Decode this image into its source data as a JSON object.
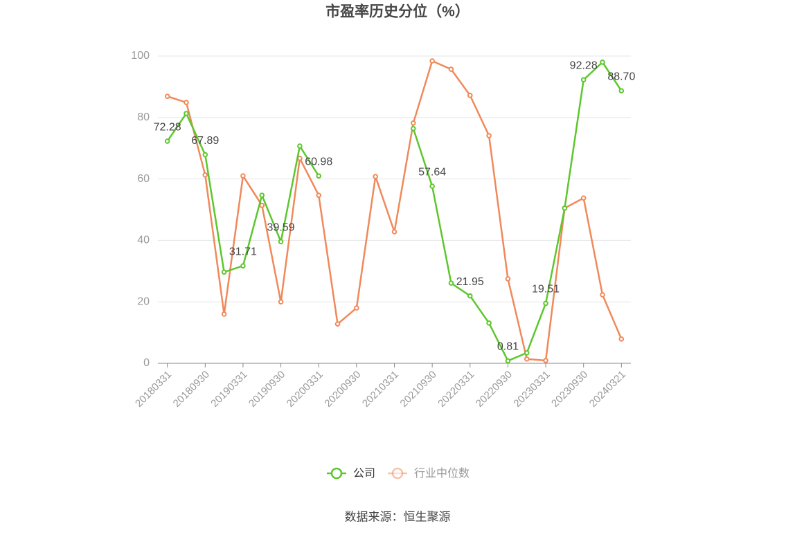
{
  "chart_data": {
    "type": "line",
    "title": "市盈率历史分位（%）",
    "categories": [
      "20180331",
      null,
      "20180930",
      null,
      "20190331",
      null,
      "20190930",
      null,
      "20200331",
      null,
      "20200930",
      null,
      "20210331",
      null,
      "20210930",
      null,
      "20220331",
      null,
      "20220930",
      null,
      "20230331",
      null,
      "20230930",
      null,
      "20240321"
    ],
    "series": [
      {
        "name": "公司",
        "color": "#5cc72c",
        "values": [
          72.28,
          81.3,
          67.89,
          29.7,
          31.71,
          54.7,
          39.59,
          70.7,
          60.98,
          null,
          null,
          null,
          null,
          76.4,
          57.64,
          26.1,
          21.95,
          13.1,
          0.81,
          3.4,
          19.51,
          50.5,
          92.28,
          98.0,
          88.7
        ],
        "value_labels": [
          "72.28",
          null,
          "67.89",
          null,
          "31.71",
          null,
          "39.59",
          null,
          "60.98",
          null,
          null,
          null,
          null,
          null,
          "57.64",
          null,
          "21.95",
          null,
          "0.81",
          null,
          "19.51",
          null,
          "92.28",
          null,
          "88.70"
        ]
      },
      {
        "name": "行业中位数",
        "color": "#f0895a",
        "values": [
          86.9,
          84.9,
          61.3,
          16.0,
          61.0,
          51.4,
          20.0,
          66.7,
          54.7,
          12.8,
          18.0,
          60.8,
          42.8,
          78.2,
          98.4,
          95.7,
          87.2,
          74.1,
          27.5,
          1.4,
          0.9,
          50.5,
          53.8,
          22.3,
          7.9
        ]
      }
    ],
    "ylim": [
      0,
      100
    ],
    "yticks": [
      0,
      20,
      40,
      60,
      80,
      100
    ],
    "grid": true,
    "source": "数据来源：恒生聚源"
  }
}
